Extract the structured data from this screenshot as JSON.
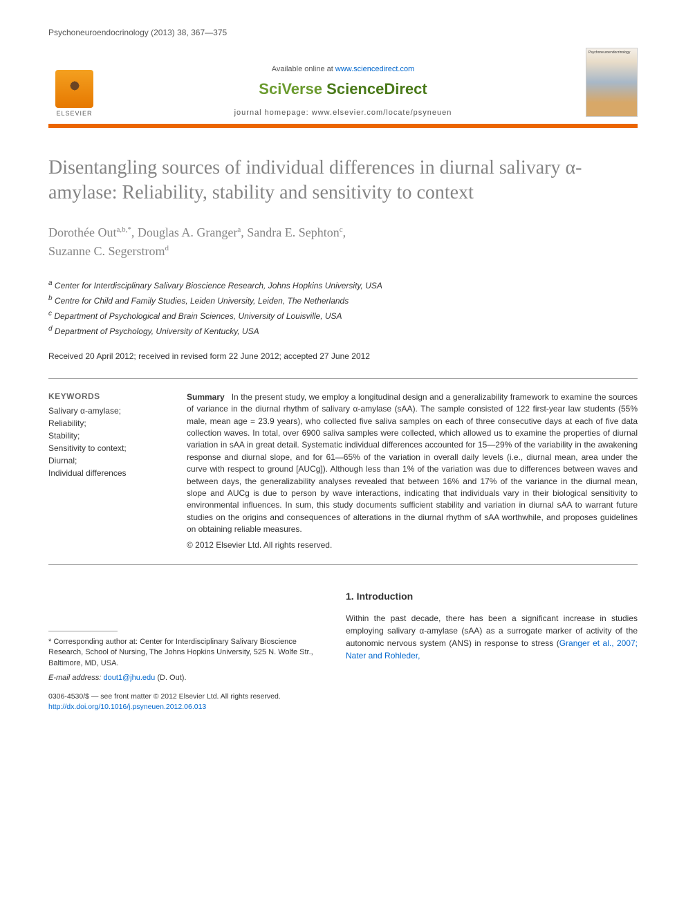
{
  "header": {
    "journal_ref": "Psychoneuroendocrinology (2013) 38, 367—375",
    "available_text": "Available online at ",
    "available_url": "www.sciencedirect.com",
    "platform_name_1": "SciVerse ",
    "platform_name_2": "ScienceDirect",
    "homepage_text": "journal homepage: www.elsevier.com/locate/psyneuen",
    "elsevier_label": "ELSEVIER",
    "cover_title": "Psychoneuroendocrinology"
  },
  "article": {
    "title": "Disentangling sources of individual differences in diurnal salivary α-amylase: Reliability, stability and sensitivity to context",
    "authors_html": "Dorothée Out",
    "author_1": "Dorothée Out",
    "author_1_sup": "a,b,*",
    "author_2": "Douglas A. Granger",
    "author_2_sup": "a",
    "author_3": "Sandra E. Sephton",
    "author_3_sup": "c",
    "author_4": "Suzanne C. Segerstrom",
    "author_4_sup": "d"
  },
  "affiliations": {
    "a": "Center for Interdisciplinary Salivary Bioscience Research, Johns Hopkins University, USA",
    "b": "Centre for Child and Family Studies, Leiden University, Leiden, The Netherlands",
    "c": "Department of Psychological and Brain Sciences, University of Louisville, USA",
    "d": "Department of Psychology, University of Kentucky, USA"
  },
  "dates": "Received 20 April 2012; received in revised form 22 June 2012; accepted 27 June 2012",
  "keywords": {
    "heading": "KEYWORDS",
    "items": "Salivary α-amylase;\nReliability;\nStability;\nSensitivity to context;\nDiurnal;\nIndividual differences"
  },
  "summary": {
    "label": "Summary",
    "text": "In the present study, we employ a longitudinal design and a generalizability framework to examine the sources of variance in the diurnal rhythm of salivary α-amylase (sAA). The sample consisted of 122 first-year law students (55% male, mean age = 23.9 years), who collected five saliva samples on each of three consecutive days at each of five data collection waves. In total, over 6900 saliva samples were collected, which allowed us to examine the properties of diurnal variation in sAA in great detail. Systematic individual differences accounted for 15—29% of the variability in the awakening response and diurnal slope, and for 61—65% of the variation in overall daily levels (i.e., diurnal mean, area under the curve with respect to ground [AUCg]). Although less than 1% of the variation was due to differences between waves and between days, the generalizability analyses revealed that between 16% and 17% of the variance in the diurnal mean, slope and AUCg is due to person by wave interactions, indicating that individuals vary in their biological sensitivity to environmental influences. In sum, this study documents sufficient stability and variation in diurnal sAA to warrant future studies on the origins and consequences of alterations in the diurnal rhythm of sAA worthwhile, and proposes guidelines on obtaining reliable measures.",
    "copyright": "© 2012 Elsevier Ltd. All rights reserved."
  },
  "intro": {
    "heading": "1. Introduction",
    "text_1": "Within the past decade, there has been a significant increase in studies employing salivary α-amylase (sAA) as a surrogate marker of activity of the autonomic nervous system (ANS) in response to stress (",
    "ref_1": "Granger et al., 2007; Nater and Rohleder,"
  },
  "footer": {
    "corresponding_label": "* Corresponding author at: Center for Interdisciplinary Salivary Bioscience Research, School of Nursing, The Johns Hopkins University, 525 N. Wolfe Str., Baltimore, MD, USA.",
    "email_label": "E-mail address: ",
    "email": "dout1@jhu.edu",
    "email_suffix": " (D. Out).",
    "issn_line": "0306-4530/$ — see front matter © 2012 Elsevier Ltd. All rights reserved.",
    "doi": "http://dx.doi.org/10.1016/j.psyneuen.2012.06.013"
  },
  "colors": {
    "accent_orange": "#eb6500",
    "link_blue": "#0066cc",
    "sciverse_green": "#6b9b2f",
    "title_gray": "#848484",
    "text_dark": "#333333"
  }
}
